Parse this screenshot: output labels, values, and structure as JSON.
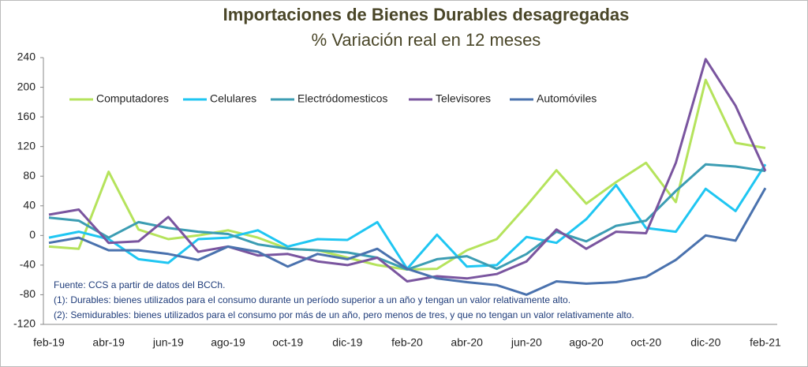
{
  "chart_data": {
    "type": "line",
    "title": "Importaciones de Bienes Durables desagregadas",
    "subtitle": "% Variación real en 12 meses",
    "categories": [
      "feb-19",
      null,
      "abr-19",
      null,
      "jun-19",
      null,
      "ago-19",
      null,
      "oct-19",
      null,
      "dic-19",
      null,
      "feb-20",
      null,
      "abr-20",
      null,
      "jun-20",
      null,
      "ago-20",
      null,
      "oct-20",
      null,
      "dic-20",
      null,
      "feb-21"
    ],
    "series": [
      {
        "name": "Computadores",
        "color": "#b5e35c",
        "values": [
          -15,
          -18,
          86,
          8,
          -5,
          0,
          7,
          -3,
          -18,
          -20,
          -30,
          -40,
          -46,
          -45,
          -20,
          -5,
          40,
          88,
          43,
          72,
          98,
          45,
          210,
          125,
          118
        ]
      },
      {
        "name": "Celulares",
        "color": "#1fc6f2",
        "values": [
          -3,
          5,
          -5,
          -32,
          -37,
          -5,
          -3,
          7,
          -15,
          -5,
          -6,
          18,
          -45,
          1,
          -42,
          -40,
          -2,
          -10,
          22,
          68,
          10,
          5,
          63,
          33,
          96
        ]
      },
      {
        "name": "Electródomesticos",
        "color": "#3c9db3",
        "values": [
          24,
          20,
          -3,
          18,
          10,
          5,
          2,
          -12,
          -18,
          -20,
          -23,
          -30,
          -46,
          -32,
          -28,
          -45,
          -25,
          5,
          -8,
          13,
          20,
          60,
          96,
          93,
          87
        ]
      },
      {
        "name": "Televisores",
        "color": "#7a559f",
        "values": [
          28,
          35,
          -10,
          -8,
          25,
          -22,
          -15,
          -27,
          -25,
          -35,
          -40,
          -30,
          -62,
          -55,
          -58,
          -52,
          -35,
          8,
          -18,
          5,
          3,
          98,
          238,
          175,
          87
        ]
      },
      {
        "name": "Automóviles",
        "color": "#4a72ae",
        "values": [
          -10,
          -3,
          -20,
          -20,
          -25,
          -33,
          -15,
          -22,
          -42,
          -25,
          -32,
          -18,
          -45,
          -58,
          -63,
          -67,
          -80,
          -62,
          -65,
          -63,
          -56,
          -33,
          0,
          -7,
          64
        ]
      }
    ],
    "ylim": [
      -120,
      240
    ],
    "yticks": [
      -120,
      -80,
      -40,
      0,
      40,
      80,
      120,
      160,
      200,
      240
    ],
    "notes": [
      "Fuente: CCS a partir de datos del BCCh.",
      "(1): Durables: bienes utilizados para el consumo durante un período superior a un año y tengan un valor relativamente alto.",
      "(2): Semidurables: bienes utilizados para el consumo por más de un año, pero menos de tres, y que no tengan un valor relativamente alto."
    ],
    "legend": "top"
  }
}
